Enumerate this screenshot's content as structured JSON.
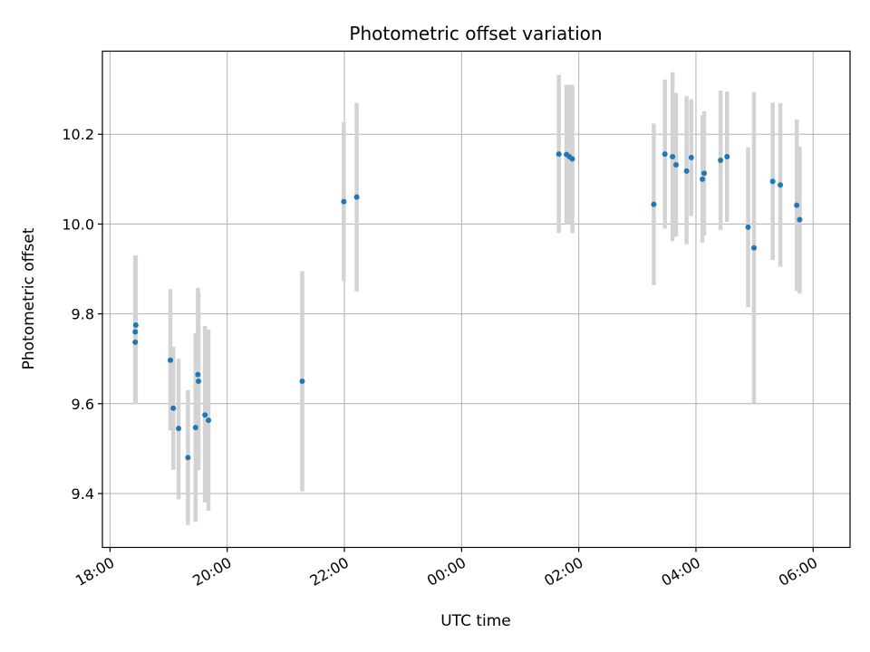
{
  "chart_data": {
    "type": "scatter",
    "title": "Photometric offset variation",
    "xlabel": "UTC time",
    "ylabel": "Photometric offset",
    "x_unit": "UTC time (hours; times after 24:00 fall on the following day)",
    "xlim": [
      17.87,
      30.63
    ],
    "ylim": [
      9.28,
      10.385
    ],
    "x_ticks": [
      {
        "value": 18,
        "label": "18:00"
      },
      {
        "value": 20,
        "label": "20:00"
      },
      {
        "value": 22,
        "label": "22:00"
      },
      {
        "value": 24,
        "label": "00:00"
      },
      {
        "value": 26,
        "label": "02:00"
      },
      {
        "value": 28,
        "label": "04:00"
      },
      {
        "value": 30,
        "label": "06:00"
      }
    ],
    "y_ticks": [
      {
        "value": 9.4,
        "label": "9.4"
      },
      {
        "value": 9.6,
        "label": "9.6"
      },
      {
        "value": 9.8,
        "label": "9.8"
      },
      {
        "value": 10.0,
        "label": "10.0"
      },
      {
        "value": 10.2,
        "label": "10.2"
      }
    ],
    "grid": true,
    "colors": {
      "point": "#1f77b4",
      "errorbar": "#d3d3d3",
      "grid": "#b0b0b0"
    },
    "points": [
      {
        "x": 18.44,
        "y": 9.775,
        "yerr_low": 9.6,
        "yerr_high": 9.93
      },
      {
        "x": 18.43,
        "y": 9.76,
        "yerr_low": 9.6,
        "yerr_high": 9.93
      },
      {
        "x": 18.43,
        "y": 9.737,
        "yerr_low": 9.6,
        "yerr_high": 9.93
      },
      {
        "x": 19.03,
        "y": 9.697,
        "yerr_low": 9.54,
        "yerr_high": 9.855
      },
      {
        "x": 19.08,
        "y": 9.59,
        "yerr_low": 9.453,
        "yerr_high": 9.727
      },
      {
        "x": 19.17,
        "y": 9.545,
        "yerr_low": 9.387,
        "yerr_high": 9.7
      },
      {
        "x": 19.33,
        "y": 9.48,
        "yerr_low": 9.33,
        "yerr_high": 9.63
      },
      {
        "x": 19.46,
        "y": 9.547,
        "yerr_low": 9.337,
        "yerr_high": 9.757
      },
      {
        "x": 19.5,
        "y": 9.665,
        "yerr_low": 9.472,
        "yerr_high": 9.858
      },
      {
        "x": 19.51,
        "y": 9.65,
        "yerr_low": 9.452,
        "yerr_high": 9.848
      },
      {
        "x": 19.62,
        "y": 9.575,
        "yerr_low": 9.38,
        "yerr_high": 9.773
      },
      {
        "x": 19.68,
        "y": 9.563,
        "yerr_low": 9.362,
        "yerr_high": 9.765
      },
      {
        "x": 21.28,
        "y": 9.65,
        "yerr_low": 9.405,
        "yerr_high": 9.895
      },
      {
        "x": 21.99,
        "y": 10.05,
        "yerr_low": 9.873,
        "yerr_high": 10.227
      },
      {
        "x": 22.21,
        "y": 10.06,
        "yerr_low": 9.85,
        "yerr_high": 10.27
      },
      {
        "x": 25.66,
        "y": 10.156,
        "yerr_low": 9.98,
        "yerr_high": 10.332
      },
      {
        "x": 25.79,
        "y": 10.155,
        "yerr_low": 10.0,
        "yerr_high": 10.31
      },
      {
        "x": 25.84,
        "y": 10.15,
        "yerr_low": 10.0,
        "yerr_high": 10.31
      },
      {
        "x": 25.89,
        "y": 10.145,
        "yerr_low": 9.98,
        "yerr_high": 10.31
      },
      {
        "x": 27.28,
        "y": 10.044,
        "yerr_low": 9.864,
        "yerr_high": 10.224
      },
      {
        "x": 27.47,
        "y": 10.156,
        "yerr_low": 9.99,
        "yerr_high": 10.322
      },
      {
        "x": 27.6,
        "y": 10.15,
        "yerr_low": 9.962,
        "yerr_high": 10.338
      },
      {
        "x": 27.66,
        "y": 10.132,
        "yerr_low": 9.972,
        "yerr_high": 10.292
      },
      {
        "x": 27.84,
        "y": 10.118,
        "yerr_low": 9.955,
        "yerr_high": 10.285
      },
      {
        "x": 27.92,
        "y": 10.148,
        "yerr_low": 10.018,
        "yerr_high": 10.278
      },
      {
        "x": 28.11,
        "y": 10.1,
        "yerr_low": 9.958,
        "yerr_high": 10.242
      },
      {
        "x": 28.14,
        "y": 10.113,
        "yerr_low": 9.975,
        "yerr_high": 10.251
      },
      {
        "x": 28.42,
        "y": 10.142,
        "yerr_low": 9.987,
        "yerr_high": 10.297
      },
      {
        "x": 28.53,
        "y": 10.15,
        "yerr_low": 10.005,
        "yerr_high": 10.295
      },
      {
        "x": 28.89,
        "y": 9.993,
        "yerr_low": 9.815,
        "yerr_high": 10.171
      },
      {
        "x": 28.99,
        "y": 9.947,
        "yerr_low": 9.6,
        "yerr_high": 10.294
      },
      {
        "x": 29.31,
        "y": 10.095,
        "yerr_low": 9.92,
        "yerr_high": 10.27
      },
      {
        "x": 29.44,
        "y": 10.087,
        "yerr_low": 9.905,
        "yerr_high": 10.269
      },
      {
        "x": 29.72,
        "y": 10.042,
        "yerr_low": 9.851,
        "yerr_high": 10.233
      },
      {
        "x": 29.77,
        "y": 10.01,
        "yerr_low": 9.845,
        "yerr_high": 10.173
      }
    ]
  }
}
